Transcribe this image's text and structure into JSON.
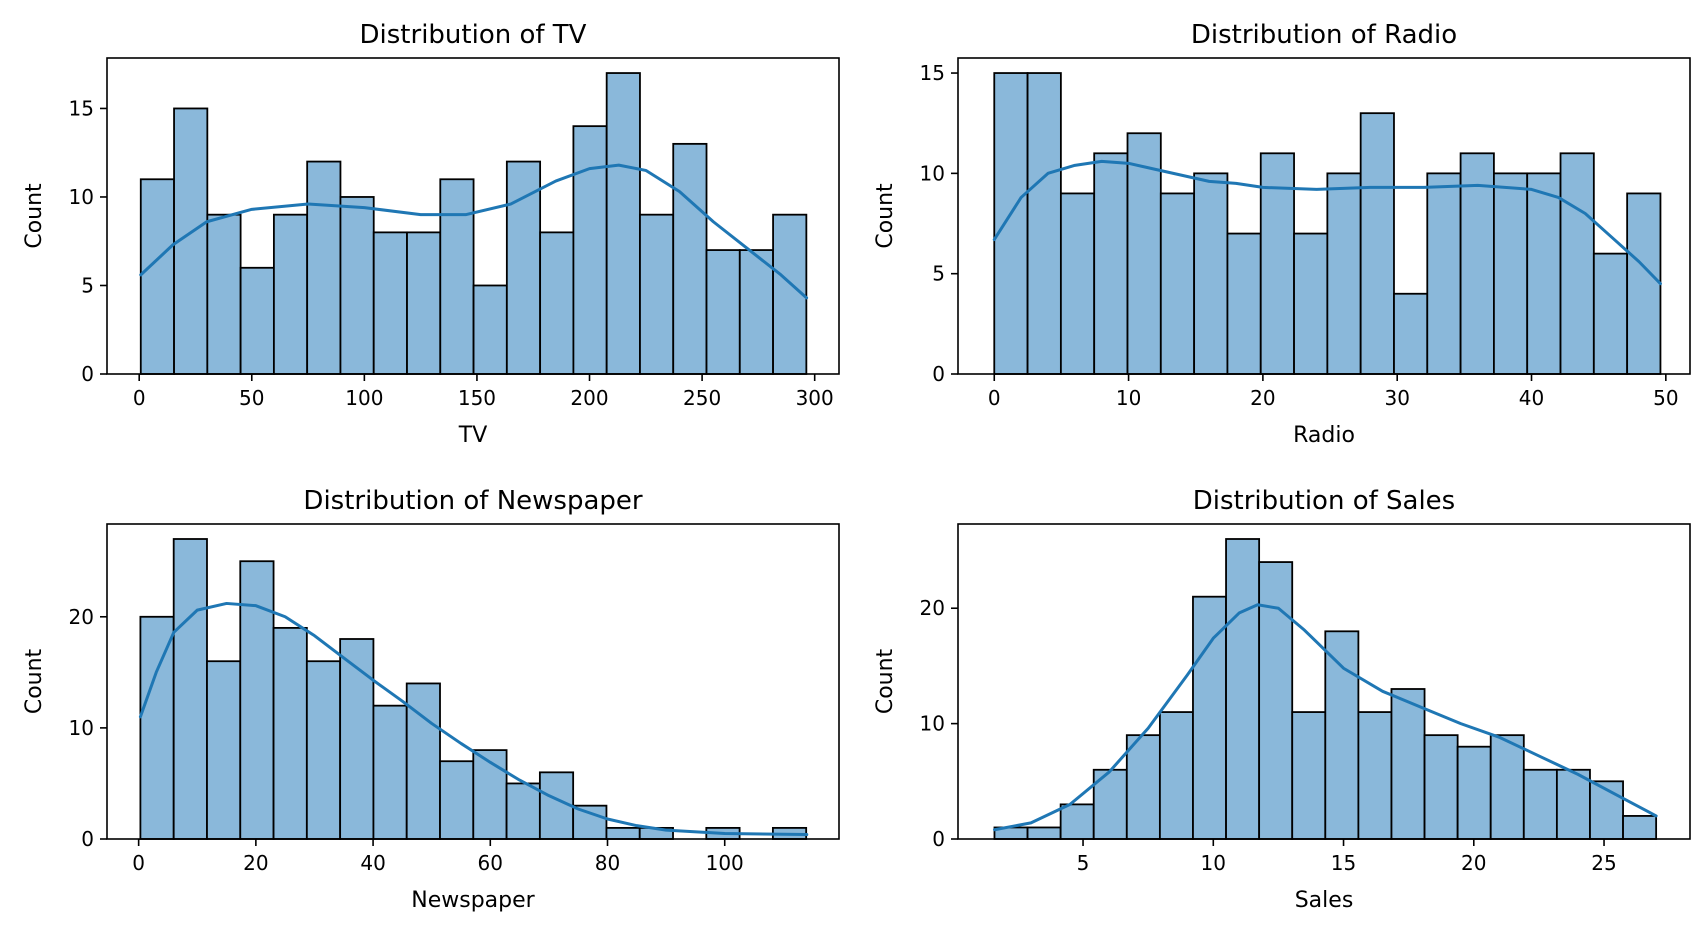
{
  "chart_data": [
    {
      "type": "histogram",
      "title": "Distribution of TV",
      "xlabel": "TV",
      "ylabel": "Count",
      "xlim": [
        -14.3,
        310.8
      ],
      "ylim": [
        0,
        17.85
      ],
      "xticks": [
        0,
        50,
        100,
        150,
        200,
        250,
        300
      ],
      "yticks": [
        0,
        5,
        10,
        15
      ],
      "bin_start": 0.7,
      "bin_width": 14.78,
      "counts": [
        11,
        15,
        9,
        6,
        9,
        12,
        10,
        8,
        8,
        11,
        5,
        12,
        8,
        14,
        17,
        9,
        13,
        7,
        7,
        9
      ],
      "kde": [
        [
          0.7,
          5.6
        ],
        [
          15,
          7.3
        ],
        [
          30,
          8.6
        ],
        [
          50,
          9.3
        ],
        [
          75,
          9.6
        ],
        [
          100,
          9.4
        ],
        [
          125,
          9.0
        ],
        [
          145,
          9.0
        ],
        [
          165,
          9.6
        ],
        [
          185,
          10.9
        ],
        [
          200,
          11.6
        ],
        [
          213,
          11.8
        ],
        [
          225,
          11.5
        ],
        [
          240,
          10.3
        ],
        [
          255,
          8.6
        ],
        [
          270,
          7.1
        ],
        [
          285,
          5.6
        ],
        [
          296.4,
          4.3
        ]
      ],
      "bar_color": "#8ab8da",
      "line_color": "#1f77b4"
    },
    {
      "type": "histogram",
      "title": "Distribution of Radio",
      "xlabel": "Radio",
      "ylabel": "Count",
      "xlim": [
        -2.7,
        51.8
      ],
      "ylim": [
        0,
        15.75
      ],
      "xticks": [
        0,
        10,
        20,
        30,
        40,
        50
      ],
      "yticks": [
        0,
        5,
        10,
        15
      ],
      "bin_start": 0,
      "bin_width": 2.48,
      "counts": [
        15,
        15,
        9,
        11,
        12,
        9,
        10,
        7,
        11,
        7,
        10,
        13,
        4,
        10,
        11,
        10,
        10,
        11,
        6,
        9
      ],
      "kde": [
        [
          0,
          6.7
        ],
        [
          2,
          8.8
        ],
        [
          4,
          10.0
        ],
        [
          6,
          10.4
        ],
        [
          8,
          10.6
        ],
        [
          10,
          10.5
        ],
        [
          12,
          10.2
        ],
        [
          14,
          9.9
        ],
        [
          16,
          9.6
        ],
        [
          18,
          9.5
        ],
        [
          20,
          9.3
        ],
        [
          24,
          9.2
        ],
        [
          28,
          9.3
        ],
        [
          32,
          9.3
        ],
        [
          36,
          9.4
        ],
        [
          40,
          9.2
        ],
        [
          42,
          8.8
        ],
        [
          44,
          8.0
        ],
        [
          46,
          6.8
        ],
        [
          48,
          5.6
        ],
        [
          49.6,
          4.5
        ]
      ],
      "bar_color": "#8ab8da",
      "line_color": "#1f77b4"
    },
    {
      "type": "histogram",
      "title": "Distribution of Newspaper",
      "xlabel": "Newspaper",
      "ylabel": "Count",
      "xlim": [
        -5.4,
        119.5
      ],
      "ylim": [
        0,
        28.35
      ],
      "xticks": [
        0,
        20,
        40,
        60,
        80,
        100
      ],
      "yticks": [
        0,
        10,
        20
      ],
      "bin_start": 0.3,
      "bin_width": 5.68,
      "counts": [
        20,
        27,
        16,
        25,
        19,
        16,
        18,
        12,
        14,
        7,
        8,
        5,
        6,
        3,
        1,
        1,
        0,
        1,
        0,
        1
      ],
      "kde": [
        [
          0.3,
          11.0
        ],
        [
          3,
          15.0
        ],
        [
          6,
          18.6
        ],
        [
          10,
          20.6
        ],
        [
          15,
          21.2
        ],
        [
          20,
          21.0
        ],
        [
          25,
          20.0
        ],
        [
          30,
          18.3
        ],
        [
          35,
          16.3
        ],
        [
          40,
          14.3
        ],
        [
          45,
          12.4
        ],
        [
          50,
          10.4
        ],
        [
          55,
          8.6
        ],
        [
          60,
          6.9
        ],
        [
          65,
          5.3
        ],
        [
          70,
          3.9
        ],
        [
          75,
          2.7
        ],
        [
          80,
          1.8
        ],
        [
          85,
          1.2
        ],
        [
          90,
          0.8
        ],
        [
          100,
          0.5
        ],
        [
          114,
          0.4
        ]
      ],
      "bar_color": "#8ab8da",
      "line_color": "#1f77b4"
    },
    {
      "type": "histogram",
      "title": "Distribution of Sales",
      "xlabel": "Sales",
      "ylabel": "Count",
      "xlim": [
        0.2,
        28.3
      ],
      "ylim": [
        0,
        27.3
      ],
      "xticks": [
        5,
        10,
        15,
        20,
        25
      ],
      "yticks": [
        0,
        10,
        20
      ],
      "bin_start": 1.6,
      "bin_width": 1.27,
      "counts": [
        1,
        1,
        3,
        6,
        9,
        11,
        21,
        26,
        24,
        11,
        18,
        11,
        13,
        9,
        8,
        9,
        6,
        6,
        5,
        2
      ],
      "kde": [
        [
          1.6,
          0.8
        ],
        [
          3,
          1.4
        ],
        [
          4.5,
          3.0
        ],
        [
          6,
          5.8
        ],
        [
          7.5,
          9.6
        ],
        [
          9,
          14.2
        ],
        [
          10,
          17.4
        ],
        [
          11,
          19.6
        ],
        [
          11.7,
          20.3
        ],
        [
          12.5,
          20.0
        ],
        [
          13.5,
          18.1
        ],
        [
          15,
          14.8
        ],
        [
          16.5,
          12.8
        ],
        [
          18,
          11.4
        ],
        [
          19.5,
          10.0
        ],
        [
          21,
          8.8
        ],
        [
          22.5,
          7.2
        ],
        [
          24,
          5.6
        ],
        [
          25.5,
          3.8
        ],
        [
          27,
          2.0
        ]
      ],
      "bar_color": "#8ab8da",
      "line_color": "#1f77b4"
    }
  ]
}
